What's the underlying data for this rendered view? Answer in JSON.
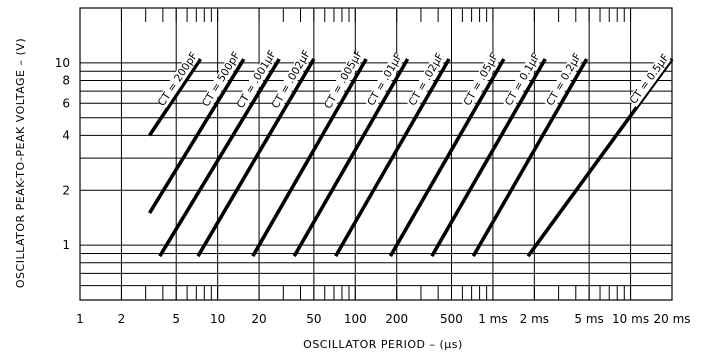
{
  "chart_data": {
    "type": "line",
    "title": "",
    "xlabel": "OSCILLATOR PERIOD – (μs)",
    "ylabel": "OSCILLATOR PEAK-TO-PEAK VOLTAGE – (V)",
    "x_scale": "log",
    "y_scale": "log",
    "xlim": [
      1,
      20000
    ],
    "ylim": [
      0.5,
      20
    ],
    "grid": true,
    "x_ticks": [
      {
        "value": 1,
        "label": "1"
      },
      {
        "value": 2,
        "label": "2"
      },
      {
        "value": 5,
        "label": "5"
      },
      {
        "value": 10,
        "label": "10"
      },
      {
        "value": 20,
        "label": "20"
      },
      {
        "value": 50,
        "label": "50"
      },
      {
        "value": 100,
        "label": "100"
      },
      {
        "value": 200,
        "label": "200"
      },
      {
        "value": 500,
        "label": "500"
      },
      {
        "value": 1000,
        "label": "1 ms"
      },
      {
        "value": 2000,
        "label": "2 ms"
      },
      {
        "value": 5000,
        "label": "5 ms"
      },
      {
        "value": 10000,
        "label": "10 ms"
      },
      {
        "value": 20000,
        "label": "20 ms"
      }
    ],
    "y_ticks": [
      {
        "value": 1,
        "label": "1"
      },
      {
        "value": 2,
        "label": "2"
      },
      {
        "value": 4,
        "label": "4"
      },
      {
        "value": 6,
        "label": "6"
      },
      {
        "value": 8,
        "label": "8"
      },
      {
        "value": 10,
        "label": "10"
      }
    ],
    "series": [
      {
        "name": "CT = 200pF",
        "x": [
          3.2,
          7.5
        ],
        "y": [
          4,
          10.5
        ]
      },
      {
        "name": "CT = 500pF",
        "x": [
          3.2,
          15.5
        ],
        "y": [
          1.5,
          10.5
        ]
      },
      {
        "name": "CT = .001μF",
        "x": [
          3.8,
          28
        ],
        "y": [
          0.87,
          10.5
        ]
      },
      {
        "name": "CT = .002μF",
        "x": [
          7.2,
          50
        ],
        "y": [
          0.87,
          10.5
        ]
      },
      {
        "name": "CT = .005μF",
        "x": [
          18,
          120
        ],
        "y": [
          0.87,
          10.5
        ]
      },
      {
        "name": "CT = .01μF",
        "x": [
          36,
          240
        ],
        "y": [
          0.87,
          10.5
        ]
      },
      {
        "name": "CT = .02μF",
        "x": [
          72,
          480
        ],
        "y": [
          0.87,
          10.5
        ]
      },
      {
        "name": "CT = .05μF",
        "x": [
          180,
          1200
        ],
        "y": [
          0.87,
          10.5
        ]
      },
      {
        "name": "CT = 0.1μF",
        "x": [
          360,
          2400
        ],
        "y": [
          0.87,
          10.5
        ]
      },
      {
        "name": "CT = 0.2μF",
        "x": [
          720,
          4800
        ],
        "y": [
          0.87,
          10.5
        ]
      },
      {
        "name": "CT = 0.5μF",
        "x": [
          1800,
          20000
        ],
        "y": [
          0.87,
          10.5
        ]
      }
    ]
  }
}
